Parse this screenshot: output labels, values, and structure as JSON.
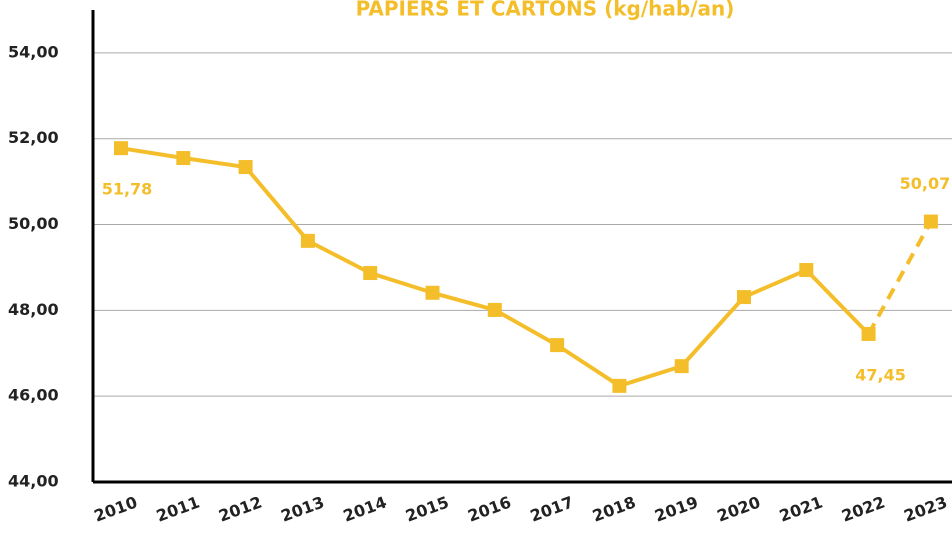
{
  "chart_data": {
    "type": "line",
    "title": "PAPIERS ET CARTONS (kg/hab/an)",
    "categories": [
      "2010",
      "2011",
      "2012",
      "2013",
      "2014",
      "2015",
      "2016",
      "2017",
      "2018",
      "2019",
      "2020",
      "2021",
      "2022",
      "2023"
    ],
    "series": [
      {
        "color": "#F4BE2B",
        "values": [
          51.78,
          51.55,
          51.34,
          49.62,
          48.87,
          48.41,
          48.01,
          47.19,
          46.24,
          46.7,
          48.31,
          48.94,
          47.45,
          50.07
        ],
        "value_labels": [
          "51,78",
          null,
          null,
          null,
          null,
          null,
          null,
          null,
          null,
          null,
          null,
          null,
          "47,45",
          "50,07"
        ]
      }
    ],
    "last_segment_dashed": true,
    "ylim": [
      44,
      55
    ],
    "yticks": [
      {
        "value": 44,
        "label": "44,00"
      },
      {
        "value": 46,
        "label": "46,00"
      },
      {
        "value": 48,
        "label": "48,00"
      },
      {
        "value": 50,
        "label": "50,00"
      },
      {
        "value": 52,
        "label": "52,00"
      },
      {
        "value": 54,
        "label": "54,00"
      }
    ],
    "grid": true
  }
}
